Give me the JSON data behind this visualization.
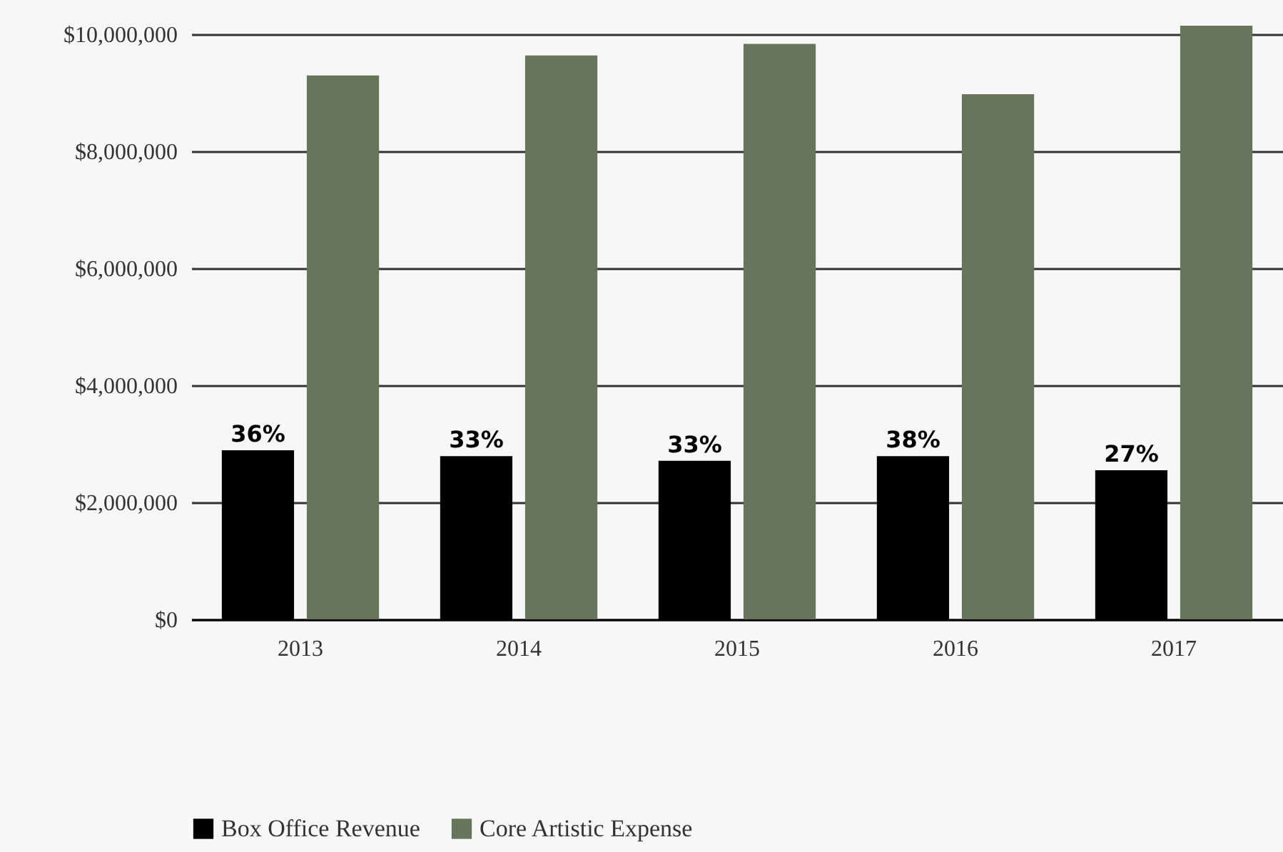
{
  "chart_data": {
    "type": "bar",
    "categories": [
      "2013",
      "2014",
      "2015",
      "2016",
      "2017"
    ],
    "series": [
      {
        "name": "Box Office Revenue",
        "color": "#000000",
        "values": [
          2890000,
          2790000,
          2710000,
          2790000,
          2550000
        ]
      },
      {
        "name": "Core Artistic Expense",
        "color": "#67765b",
        "values": [
          9300000,
          9640000,
          9840000,
          8980000,
          10150000
        ]
      }
    ],
    "ylim": [
      0,
      10150000
    ],
    "yticks": [
      {
        "value": 0,
        "label": "$0"
      },
      {
        "value": 2000000,
        "label": "$2,000,000"
      },
      {
        "value": 4000000,
        "label": "$4,000,000"
      },
      {
        "value": 6000000,
        "label": "$6,000,000"
      },
      {
        "value": 8000000,
        "label": "$8,000,000"
      },
      {
        "value": 10000000,
        "label": "$10,000,000"
      }
    ],
    "annotations": [
      {
        "text": "36%",
        "x": "2013",
        "y": 2890000
      },
      {
        "text": "33%",
        "x": "2014",
        "y": 2790000
      },
      {
        "text": "33%",
        "x": "2015",
        "y": 2710000
      },
      {
        "text": "38%",
        "x": "2016",
        "y": 2790000
      },
      {
        "text": "27%",
        "x": "2017",
        "y": 2550000
      }
    ],
    "grid": "y",
    "legend": "bottom"
  }
}
